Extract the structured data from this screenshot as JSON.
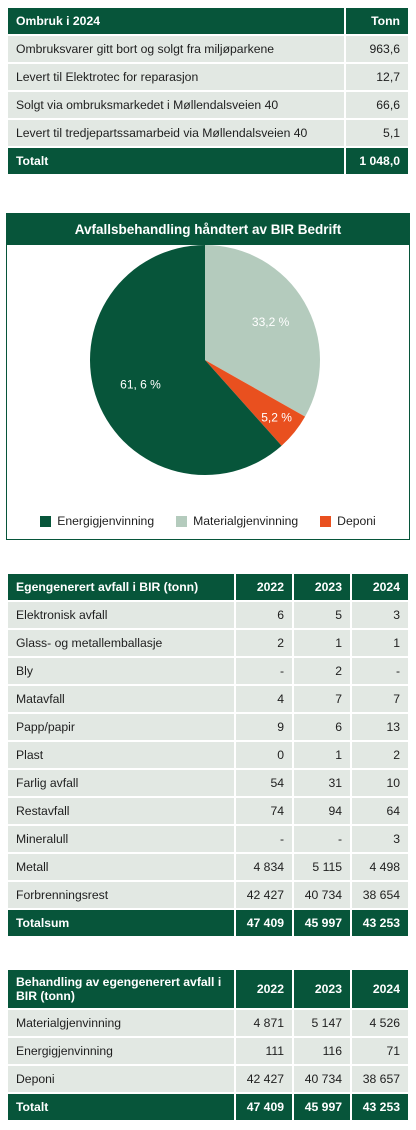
{
  "reuse_table": {
    "header": [
      "Ombruk i 2024",
      "Tonn"
    ],
    "rows": [
      {
        "label": "Ombruksvarer gitt bort og solgt fra miljøparkene",
        "value": "963,6"
      },
      {
        "label": "Levert til Elektrotec for reparasjon",
        "value": "12,7"
      },
      {
        "label": "Solgt via ombruksmarkedet i Møllendalsveien 40",
        "value": "66,6"
      },
      {
        "label": "Levert til tredjepartssamarbeid via Møllendalsveien 40",
        "value": "5,1"
      }
    ],
    "total": {
      "label": "Totalt",
      "value": "1 048,0"
    }
  },
  "chart_data": {
    "type": "pie",
    "title": "Avfallsbehandling håndtert av BIR Bedrift",
    "slices": [
      {
        "name": "Materialgjenvinning",
        "value": 33.2,
        "label": "33,2 %",
        "color": "#b4cbbd"
      },
      {
        "name": "Deponi",
        "value": 5.2,
        "label": "5,2 %",
        "color": "#e9501f"
      },
      {
        "name": "Energigjenvinning",
        "value": 61.6,
        "label": "61, 6 %",
        "color": "#07553a"
      }
    ],
    "legend": [
      {
        "name": "Energigjenvinning",
        "color": "#07553a"
      },
      {
        "name": "Materialgjenvinning",
        "color": "#b4cbbd"
      },
      {
        "name": "Deponi",
        "color": "#e9501f"
      }
    ],
    "legend_placement": "bottom"
  },
  "waste_table": {
    "header": [
      "Egengenerert avfall i BIR (tonn)",
      "2022",
      "2023",
      "2024"
    ],
    "rows": [
      [
        "Elektronisk avfall",
        "6",
        "5",
        "3"
      ],
      [
        "Glass- og metallemballasje",
        "2",
        "1",
        "1"
      ],
      [
        "Bly",
        "-",
        "2",
        "-"
      ],
      [
        "Matavfall",
        "4",
        "7",
        "7"
      ],
      [
        "Papp/papir",
        "9",
        "6",
        "13"
      ],
      [
        "Plast",
        "0",
        "1",
        "2"
      ],
      [
        "Farlig avfall",
        "54",
        "31",
        "10"
      ],
      [
        "Restavfall",
        "74",
        "94",
        "64"
      ],
      [
        "Mineralull",
        "-",
        "-",
        "3"
      ],
      [
        "Metall",
        "4 834",
        "5 115",
        "4 498"
      ],
      [
        "Forbrenningsrest",
        "42 427",
        "40 734",
        "38 654"
      ]
    ],
    "total": [
      "Totalsum",
      "47 409",
      "45 997",
      "43 253"
    ]
  },
  "treatment_table": {
    "header": [
      "Behandling av egengenerert avfall i BIR (tonn)",
      "2022",
      "2023",
      "2024"
    ],
    "rows": [
      [
        "Materialgjenvinning",
        "4 871",
        "5 147",
        "4 526"
      ],
      [
        "Energigjenvinning",
        "111",
        "116",
        "71"
      ],
      [
        "Deponi",
        "42 427",
        "40 734",
        "38 657"
      ]
    ],
    "total": [
      "Totalt",
      "47 409",
      "45 997",
      "43 253"
    ]
  }
}
